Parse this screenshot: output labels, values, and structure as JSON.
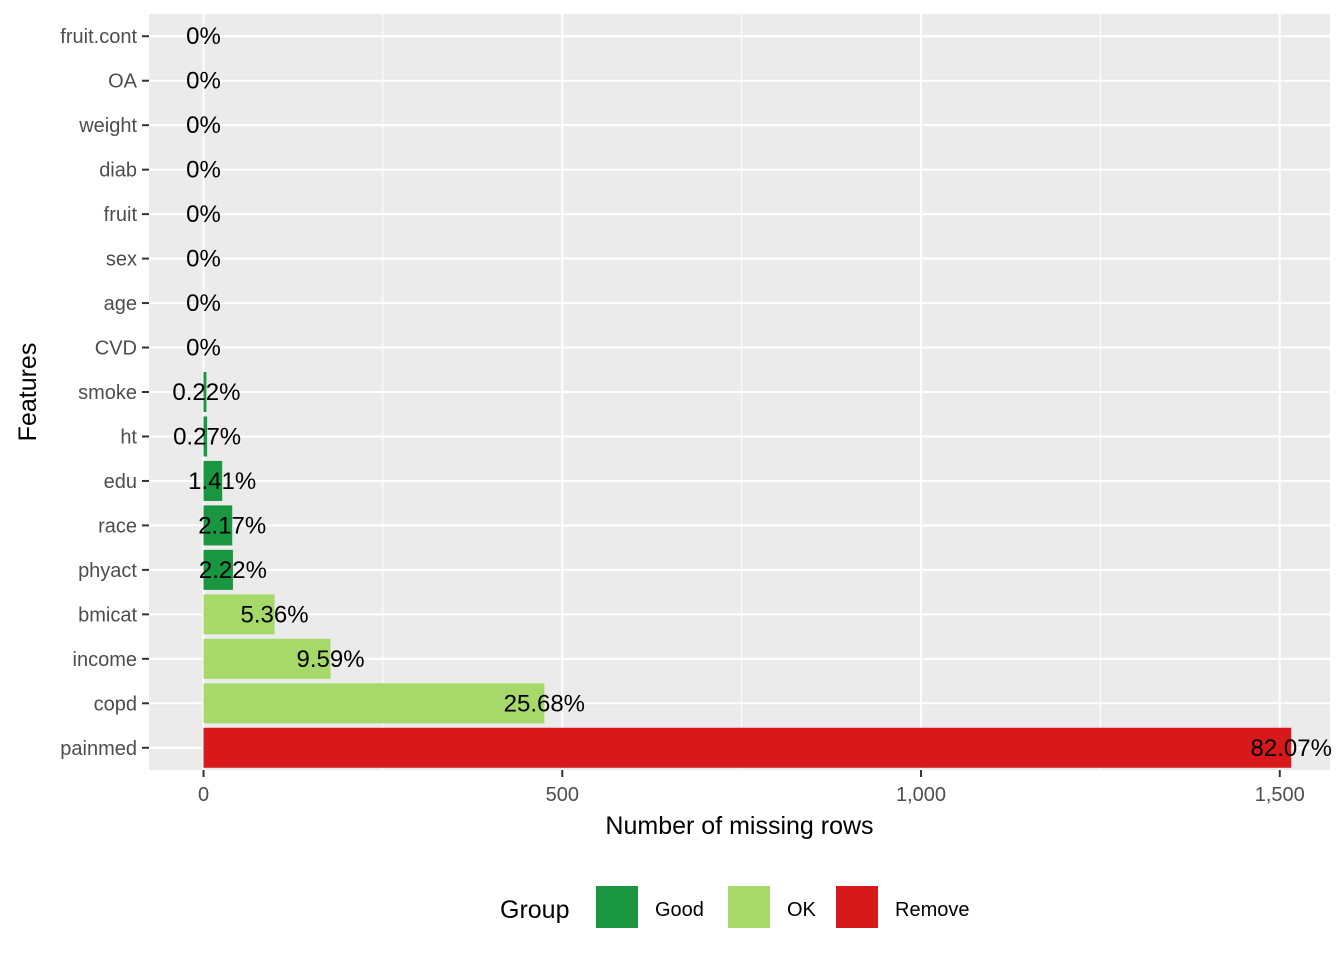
{
  "chart_data": {
    "type": "bar",
    "orientation": "horizontal",
    "xlabel": "Number of missing rows",
    "ylabel": "Features",
    "xlim": [
      -76,
      1570
    ],
    "x_ticks": [
      0,
      500,
      1000,
      1500
    ],
    "x_tick_labels": [
      "0",
      "500",
      "1,000",
      "1,500"
    ],
    "grid": true,
    "legend_position": "bottom",
    "legend_title": "Group",
    "groups": [
      {
        "name": "Good",
        "color": "#1a9641"
      },
      {
        "name": "OK",
        "color": "#a6d96a"
      },
      {
        "name": "Remove",
        "color": "#d7191c"
      }
    ],
    "categories": [
      "fruit.cont",
      "OA",
      "weight",
      "diab",
      "fruit",
      "sex",
      "age",
      "CVD",
      "smoke",
      "ht",
      "edu",
      "race",
      "phyact",
      "bmicat",
      "income",
      "copd",
      "painmed"
    ],
    "values": [
      0,
      0,
      0,
      0,
      0,
      0,
      0,
      0,
      4,
      5,
      26,
      40,
      41,
      99,
      177,
      475,
      1516
    ],
    "labels": [
      "0%",
      "0%",
      "0%",
      "0%",
      "0%",
      "0%",
      "0%",
      "0%",
      "0.22%",
      "0.27%",
      "1.41%",
      "2.17%",
      "2.22%",
      "5.36%",
      "9.59%",
      "25.68%",
      "82.07%"
    ],
    "group_of_bar": [
      "Good",
      "Good",
      "Good",
      "Good",
      "Good",
      "Good",
      "Good",
      "Good",
      "Good",
      "Good",
      "Good",
      "Good",
      "Good",
      "OK",
      "OK",
      "OK",
      "Remove"
    ]
  }
}
